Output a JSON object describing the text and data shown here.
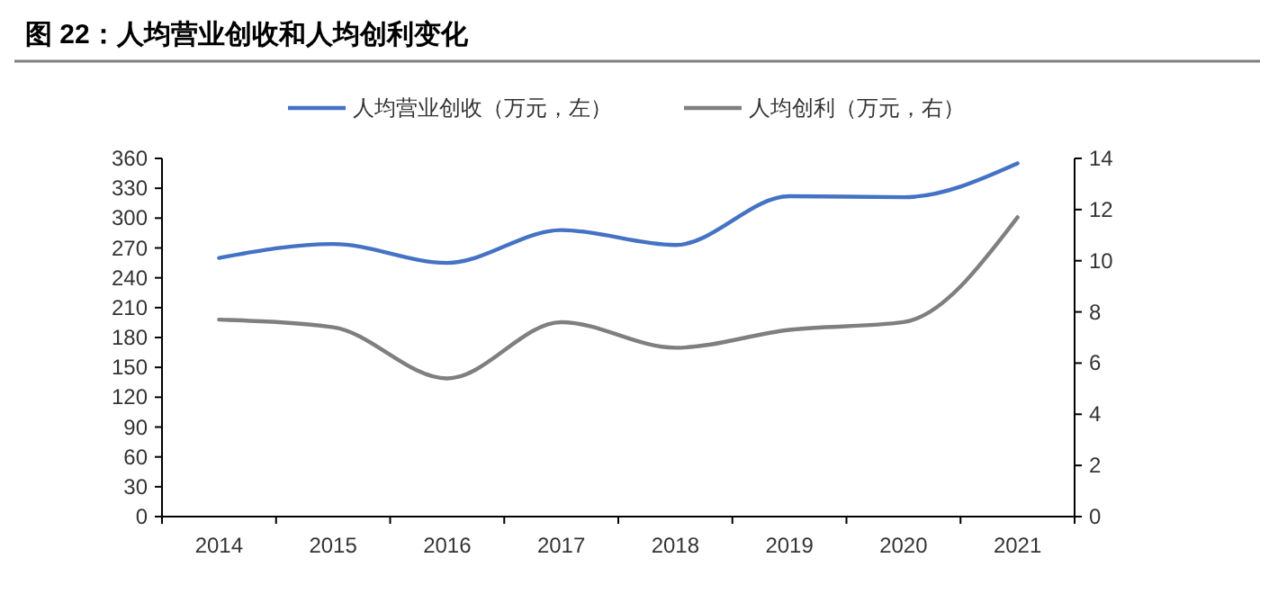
{
  "chart_data": {
    "type": "line",
    "title": "图 22：人均营业创收和人均创利变化",
    "categories": [
      "2014",
      "2015",
      "2016",
      "2017",
      "2018",
      "2019",
      "2020",
      "2021"
    ],
    "series": [
      {
        "name": "人均营业创收（万元，左）",
        "color": "#4472c4",
        "values": [
          260,
          274,
          255,
          288,
          273,
          322,
          321,
          355
        ]
      },
      {
        "name": "人均创利（万元，右）",
        "color": "#7f7f7f",
        "axis": "y2",
        "values": [
          7.7,
          7.4,
          5.4,
          7.6,
          6.6,
          7.3,
          7.6,
          11.7
        ]
      }
    ],
    "ylim": [
      0,
      360
    ],
    "yticks": [
      0,
      30,
      60,
      90,
      120,
      150,
      180,
      210,
      240,
      270,
      300,
      330,
      360
    ],
    "y2lim": [
      0,
      14
    ],
    "y2ticks": [
      0,
      2,
      4,
      6,
      8,
      10,
      12,
      14
    ],
    "grid": false,
    "legend": "top",
    "marker": "none",
    "line_style": "solid"
  }
}
